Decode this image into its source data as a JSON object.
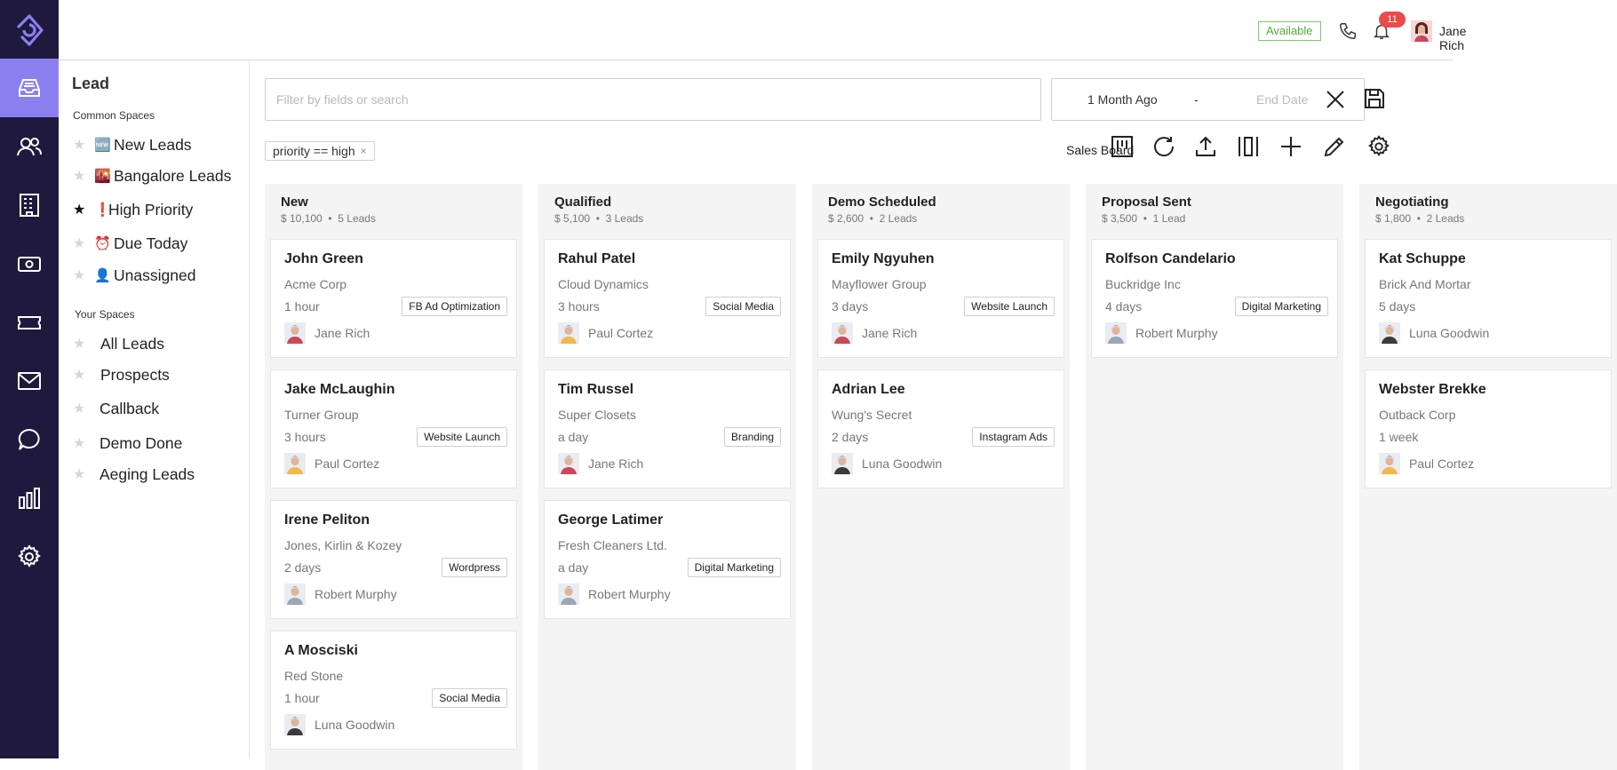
{
  "header": {
    "status": "Available",
    "notifications": "11",
    "user_name": "Jane Rich",
    "icons": [
      "phone-icon",
      "bell-icon"
    ]
  },
  "nav_rail": {
    "active": "leads",
    "items": [
      "leads-inbox-icon",
      "contacts-icon",
      "companies-icon",
      "deals-icon",
      "tickets-icon",
      "mail-icon",
      "chat-icon",
      "reports-icon",
      "settings-icon"
    ]
  },
  "sidebar": {
    "title": "Lead",
    "common_label": "Common Spaces",
    "common": [
      {
        "emoji": "🆕",
        "label": "New Leads",
        "starred": false
      },
      {
        "emoji": "🌇",
        "label": "Bangalore Leads",
        "starred": false
      },
      {
        "emoji": "❗",
        "label": "High Priority",
        "starred": true
      },
      {
        "emoji": "⏰",
        "label": "Due Today",
        "starred": false
      },
      {
        "emoji": "👤",
        "label": "Unassigned",
        "starred": false
      }
    ],
    "your_label": "Your Spaces",
    "yours": [
      {
        "label": "All Leads",
        "starred": false
      },
      {
        "label": "Prospects",
        "starred": false
      },
      {
        "label": "Callback",
        "starred": false
      },
      {
        "label": "Demo Done",
        "starred": false
      },
      {
        "label": "Aeging Leads",
        "starred": false
      }
    ]
  },
  "filters": {
    "search_placeholder": "Filter by fields or search",
    "start_date": "1 Month Ago",
    "separator": "-",
    "end_placeholder": "End Date",
    "chip": "priority == high",
    "chip_close": "×",
    "board_name": "Sales Board"
  },
  "columns": [
    {
      "title": "New",
      "amount": "$ 10,100",
      "count": "5 Leads",
      "cards": [
        {
          "name": "John Green",
          "company": "Acme Corp",
          "time": "1 hour",
          "tag": "FB Ad Optimization",
          "owner": "Jane Rich"
        },
        {
          "name": "Jake McLaughin",
          "company": "Turner Group",
          "time": "3 hours",
          "tag": "Website Launch",
          "owner": "Paul Cortez"
        },
        {
          "name": "Irene Peliton",
          "company": "Jones, Kirlin & Kozey",
          "time": "2 days",
          "tag": "Wordpress",
          "owner": "Robert Murphy"
        },
        {
          "name": "A Mosciski",
          "company": "Red Stone",
          "time": "1 hour",
          "tag": "Social Media",
          "owner": "Luna Goodwin"
        }
      ]
    },
    {
      "title": "Qualified",
      "amount": "$ 5,100",
      "count": "3 Leads",
      "cards": [
        {
          "name": "Rahul Patel",
          "company": "Cloud Dynamics",
          "time": "3 hours",
          "tag": "Social Media",
          "owner": "Paul Cortez"
        },
        {
          "name": "Tim Russel",
          "company": "Super Closets",
          "time": "a day",
          "tag": "Branding",
          "owner": "Jane Rich"
        },
        {
          "name": "George Latimer",
          "company": "Fresh Cleaners Ltd.",
          "time": "a day",
          "tag": "Digital Marketing",
          "owner": "Robert Murphy"
        }
      ]
    },
    {
      "title": "Demo Scheduled",
      "amount": "$ 2,600",
      "count": "2 Leads",
      "cards": [
        {
          "name": "Emily Ngyuhen",
          "company": "Mayflower Group",
          "time": "3 days",
          "tag": "Website Launch",
          "owner": "Jane Rich"
        },
        {
          "name": "Adrian Lee",
          "company": "Wung's Secret",
          "time": "2 days",
          "tag": "Instagram Ads",
          "owner": "Luna Goodwin"
        }
      ]
    },
    {
      "title": "Proposal Sent",
      "amount": "$ 3,500",
      "count": "1 Lead",
      "cards": [
        {
          "name": "Rolfson Candelario",
          "company": "Buckridge Inc",
          "time": "4 days",
          "tag": "Digital Marketing",
          "owner": "Robert Murphy"
        }
      ]
    },
    {
      "title": "Negotiating",
      "amount": "$ 1,800",
      "count": "2 Leads",
      "cards": [
        {
          "name": "Kat Schuppe",
          "company": "Brick And Mortar",
          "time": "5 days",
          "tag": "",
          "owner": "Luna Goodwin"
        },
        {
          "name": "Webster Brekke",
          "company": "Outback Corp",
          "time": "1 week",
          "tag": "",
          "owner": "Paul Cortez"
        }
      ]
    }
  ],
  "owner_colors": {
    "Jane Rich": "#c9485b",
    "Paul Cortez": "#f2b84b",
    "Robert Murphy": "#9aa7b5",
    "Luna Goodwin": "#3b3b3b"
  },
  "colors": {
    "rail": "#1f1a3d",
    "rail_active": "#8b80f0",
    "available": "#4caf3a",
    "badge": "#ec4a4a"
  }
}
